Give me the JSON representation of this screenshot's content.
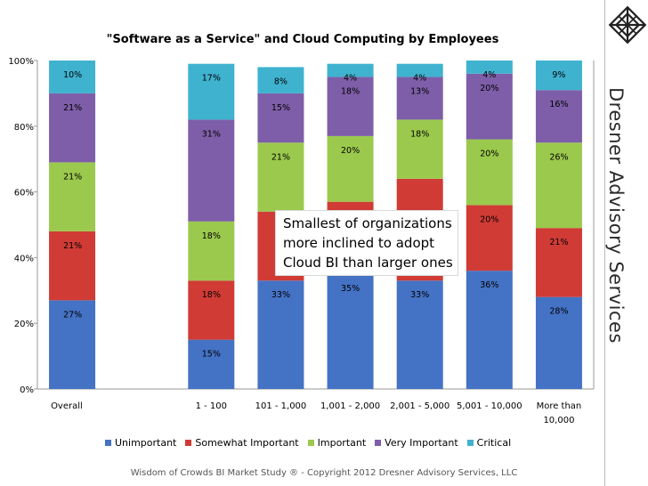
{
  "chart_data": {
    "type": "bar",
    "stacked": true,
    "normalized": true,
    "title": "\"Software as a Service\" and Cloud Computing by Employees",
    "xlabel": "",
    "ylabel": "",
    "ylim": [
      0,
      100
    ],
    "yticks": [
      "0%",
      "20%",
      "40%",
      "60%",
      "80%",
      "100%"
    ],
    "categories": [
      "Overall",
      "",
      "1 - 100",
      "101 - 1,000",
      "1,001 - 2,000",
      "2,001 - 5,000",
      "5,001 - 10,000",
      "More than 10,000"
    ],
    "series": [
      {
        "name": "Unimportant",
        "color": "#4472c4",
        "values": [
          27,
          null,
          15,
          33,
          35,
          33,
          36,
          28
        ],
        "labels": [
          "27%",
          "",
          "15%",
          "33%",
          "35%",
          "33%",
          "36%",
          "28%"
        ]
      },
      {
        "name": "Somewhat Important",
        "color": "#d03b35",
        "values": [
          21,
          null,
          18,
          21,
          22,
          31,
          20,
          21
        ],
        "labels": [
          "21%",
          "",
          "18%",
          "",
          "",
          "",
          "20%",
          "21%"
        ]
      },
      {
        "name": "Important",
        "color": "#9bc94d",
        "values": [
          21,
          null,
          18,
          21,
          20,
          18,
          20,
          26
        ],
        "labels": [
          "21%",
          "",
          "18%",
          "21%",
          "20%",
          "18%",
          "20%",
          "26%"
        ]
      },
      {
        "name": "Very Important",
        "color": "#7e5ea8",
        "values": [
          21,
          null,
          31,
          15,
          18,
          13,
          20,
          16
        ],
        "labels": [
          "21%",
          "",
          "31%",
          "15%",
          "18%",
          "13%",
          "20%",
          "16%"
        ]
      },
      {
        "name": "Critical",
        "color": "#3fb2cf",
        "values": [
          10,
          null,
          17,
          8,
          4,
          4,
          4,
          9
        ],
        "labels": [
          "10%",
          "",
          "17%",
          "8%",
          "4%",
          "4%",
          "4%",
          "9%"
        ]
      }
    ],
    "legend": {
      "position": "bottom"
    },
    "annotation": {
      "lines": [
        "Smallest of organizations",
        "more inclined to adopt",
        "Cloud BI than larger ones"
      ]
    }
  },
  "brand": {
    "name": "Dresner Advisory Services",
    "logo_icon": "knot-logo-icon"
  },
  "footer": {
    "text": "Wisdom of Crowds BI Market Study ® - Copyright 2012 Dresner Advisory Services, LLC"
  }
}
